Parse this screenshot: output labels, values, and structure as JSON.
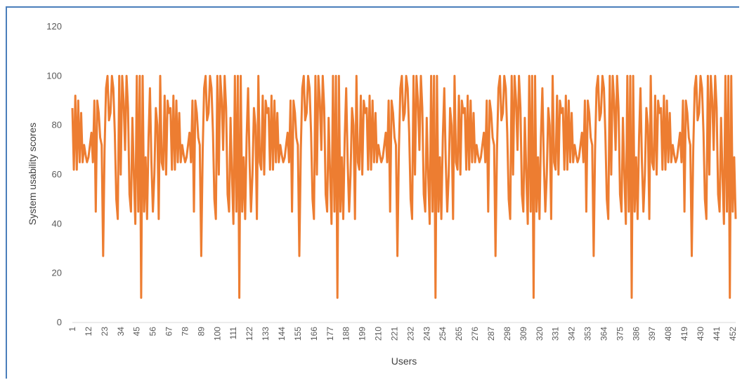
{
  "chart_data": {
    "type": "line",
    "title": "",
    "xlabel": "Users",
    "ylabel": "System usability scores",
    "ylim": [
      0,
      120
    ],
    "y_ticks": [
      0,
      20,
      40,
      60,
      80,
      100,
      120
    ],
    "xlim": [
      1,
      454
    ],
    "x_tick_labels": [
      1,
      12,
      23,
      34,
      45,
      56,
      67,
      78,
      89,
      100,
      111,
      122,
      133,
      144,
      155,
      166,
      177,
      188,
      199,
      210,
      221,
      232,
      243,
      254,
      265,
      276,
      287,
      298,
      309,
      320,
      331,
      342,
      353,
      364,
      375,
      386,
      397,
      408,
      419,
      430,
      441,
      452
    ],
    "grid": false,
    "legend": "none",
    "colors": {
      "series": "#ed7d31",
      "axis": "#d9d9d9",
      "frame": "#4a7ebb"
    },
    "series": [
      {
        "period": 67,
        "values": [
          87,
          62,
          92,
          62,
          90,
          65,
          85,
          65,
          72,
          68,
          65,
          67,
          72,
          77,
          65,
          90,
          45,
          90,
          85,
          75,
          72,
          27,
          70,
          95,
          100,
          82,
          85,
          100,
          95,
          77,
          50,
          42,
          100,
          60,
          100,
          90,
          70,
          100,
          87,
          52,
          45,
          83,
          60,
          40,
          100,
          45,
          100,
          10,
          100,
          45,
          67,
          42,
          75,
          95,
          65,
          45,
          60,
          87,
          80,
          42,
          100,
          65,
          62,
          92,
          60,
          90,
          85
        ]
      }
    ]
  }
}
